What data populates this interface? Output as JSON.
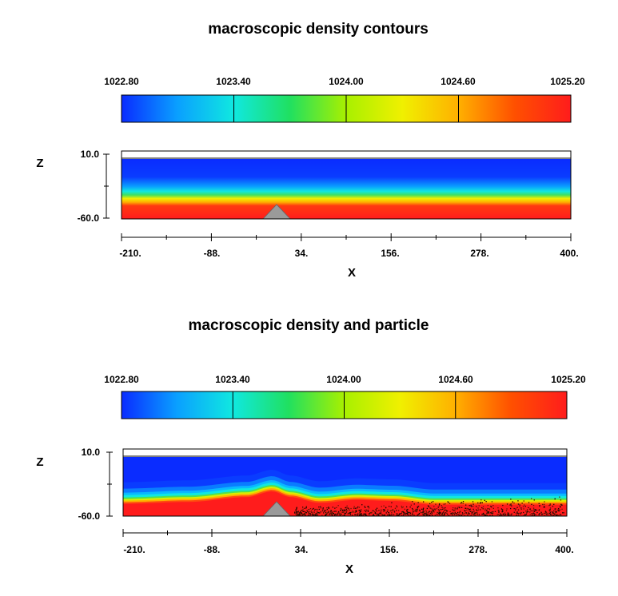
{
  "chart_data": [
    {
      "type": "heatmap",
      "title": "macroscopic density contours",
      "colorbar": {
        "ticks": [
          "1022.80",
          "1023.40",
          "1024.00",
          "1024.60",
          "1025.20"
        ],
        "range": [
          1022.8,
          1025.2
        ],
        "colormap": [
          "#0a2cff",
          "#0aa0ff",
          "#10e8e0",
          "#20e060",
          "#a8f000",
          "#f0f000",
          "#ffb000",
          "#ff5000",
          "#ff1c1c"
        ]
      },
      "xlabel": "X",
      "ylabel": "Z",
      "xlim": [
        -210,
        400
      ],
      "ylim": [
        -60,
        10
      ],
      "xticks": [
        "-210.",
        "-88.",
        "34.",
        "156.",
        "278.",
        "400."
      ],
      "yticks": [
        "10.0",
        "-60.0"
      ],
      "profile": {
        "x": [
          -210,
          400
        ],
        "interface_z": [
          -40,
          -40
        ]
      },
      "obstacle": {
        "shape": "triangle",
        "x_center": 0,
        "half_width": 16,
        "height": 18
      },
      "particles": false
    },
    {
      "type": "heatmap",
      "title": "macroscopic density and particle",
      "colorbar": {
        "ticks": [
          "1022.80",
          "1023.40",
          "1024.00",
          "1024.60",
          "1025.20"
        ],
        "range": [
          1022.8,
          1025.2
        ],
        "colormap": [
          "#0a2cff",
          "#0aa0ff",
          "#10e8e0",
          "#20e060",
          "#a8f000",
          "#f0f000",
          "#ffb000",
          "#ff5000",
          "#ff1c1c"
        ]
      },
      "xlabel": "X",
      "ylabel": "Z",
      "xlim": [
        -210,
        400
      ],
      "ylim": [
        -60,
        10
      ],
      "xticks": [
        "-210.",
        "-88.",
        "34.",
        "156.",
        "278.",
        "400."
      ],
      "yticks": [
        "10.0",
        "-60.0"
      ],
      "profile": {
        "x": [
          -210,
          -120,
          -40,
          -5,
          20,
          60,
          110,
          160,
          220,
          280,
          340,
          400
        ],
        "interface_z": [
          -43,
          -41,
          -36,
          -30,
          -36,
          -42,
          -39,
          -40,
          -44,
          -44,
          -44,
          -44
        ]
      },
      "obstacle": {
        "shape": "triangle",
        "x_center": 0,
        "half_width": 16,
        "height": 18
      },
      "particles": true
    }
  ]
}
